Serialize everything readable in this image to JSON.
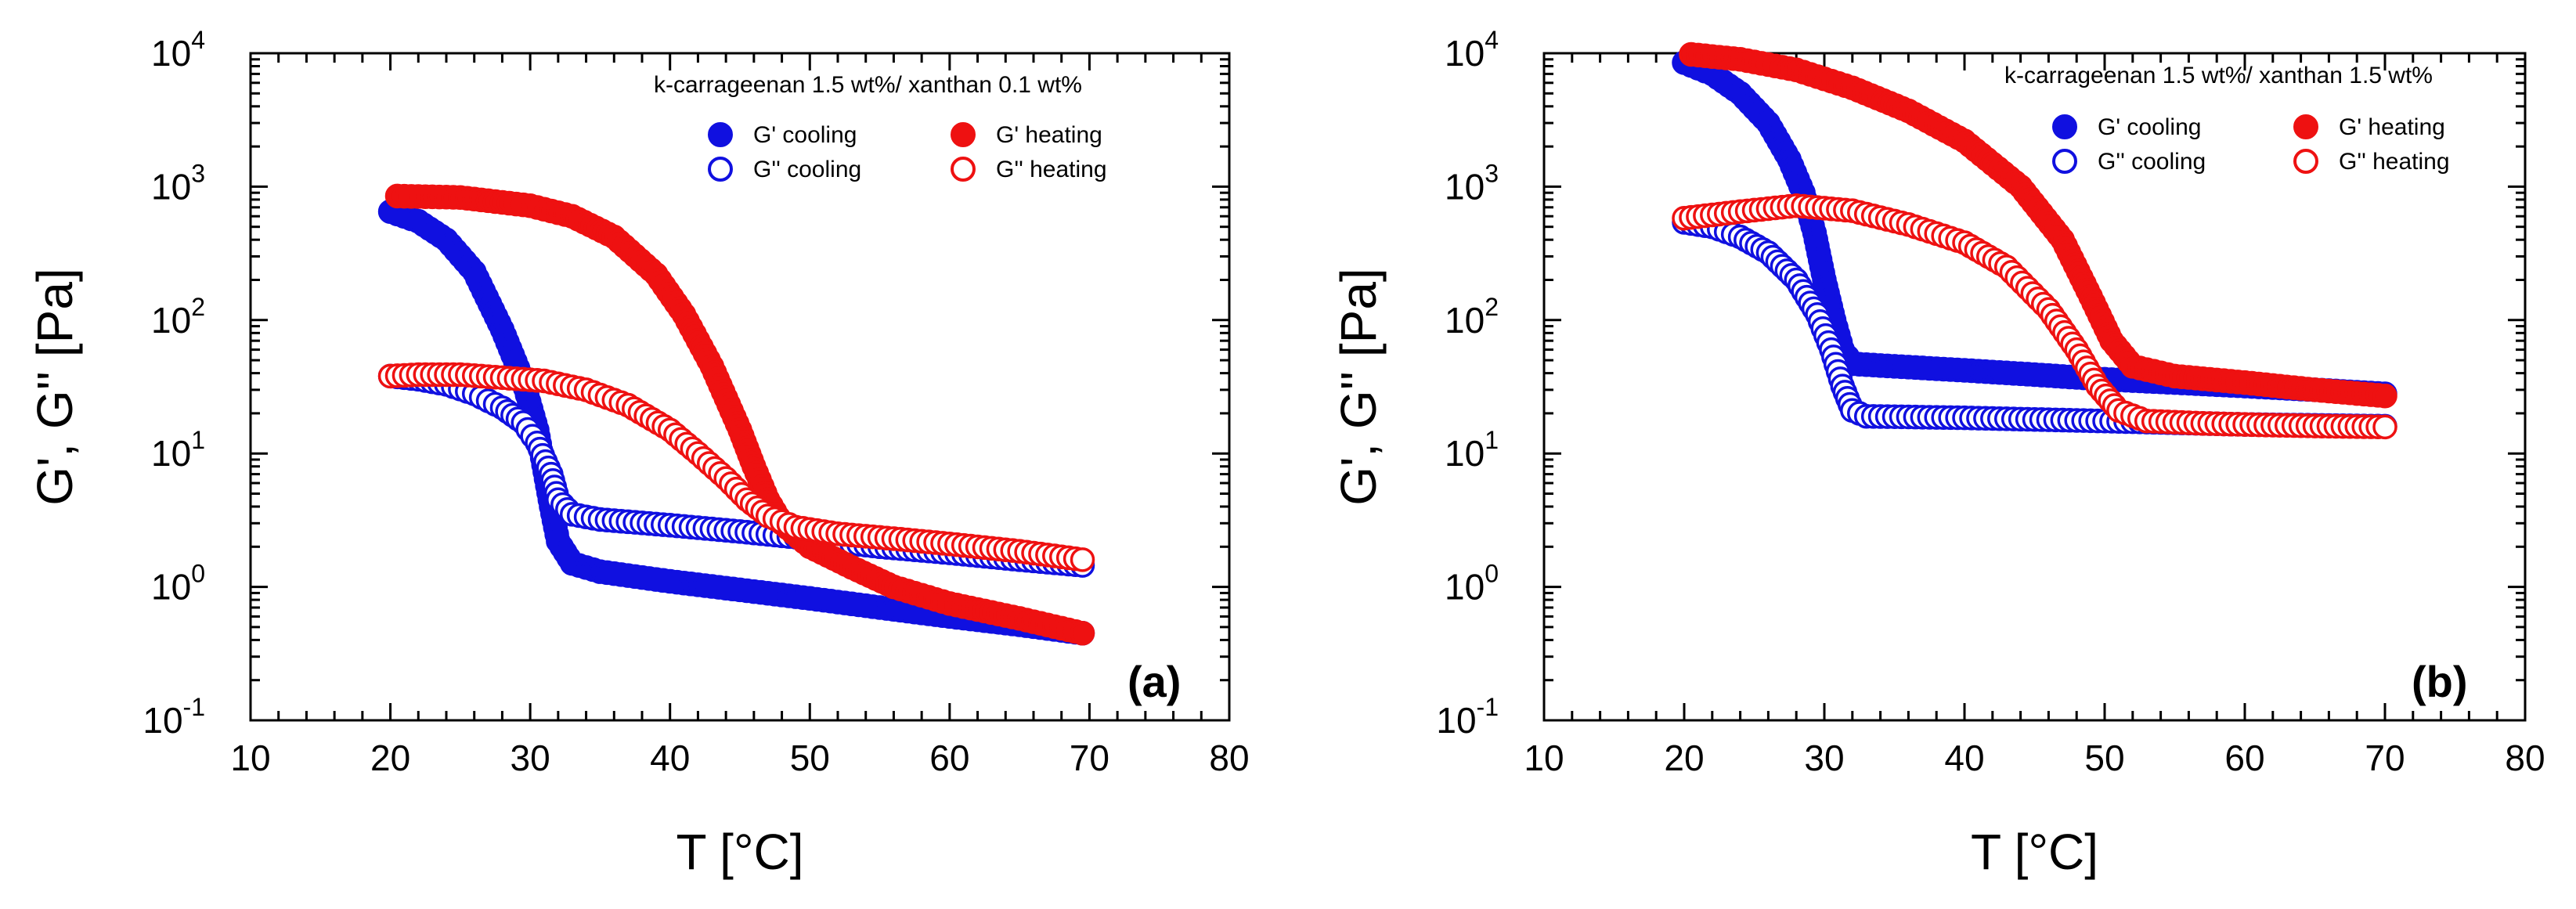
{
  "chart_data": [
    {
      "type": "scatter",
      "panel": "(a)",
      "subtitle": "k-carrageenan 1.5 wt%/ xanthan 0.1 wt%",
      "xlabel": "T [°C]",
      "ylabel": "G', G'' [Pa]",
      "xlim": [
        10,
        80
      ],
      "ylim": [
        0.1,
        10000
      ],
      "yscale": "log",
      "xticks": [
        10,
        20,
        30,
        40,
        50,
        60,
        70,
        80
      ],
      "yticks": [
        {
          "base": "10",
          "exp": "-1"
        },
        {
          "base": "10",
          "exp": "0"
        },
        {
          "base": "10",
          "exp": "1"
        },
        {
          "base": "10",
          "exp": "2"
        },
        {
          "base": "10",
          "exp": "3"
        },
        {
          "base": "10",
          "exp": "4"
        }
      ],
      "legend": [
        "G' cooling",
        "G''  cooling",
        "G' heating",
        "G'' heating"
      ],
      "series": [
        {
          "name": "G' cooling",
          "color": "#1010e0",
          "filled": true,
          "points": [
            [
              20,
              650
            ],
            [
              22,
              550
            ],
            [
              24,
              400
            ],
            [
              26,
              230
            ],
            [
              28,
              85
            ],
            [
              29.5,
              35
            ],
            [
              30.5,
              15
            ],
            [
              31.5,
              4
            ],
            [
              32,
              2.2
            ],
            [
              33,
              1.5
            ],
            [
              35,
              1.3
            ],
            [
              40,
              1.1
            ],
            [
              45,
              0.95
            ],
            [
              50,
              0.82
            ],
            [
              55,
              0.7
            ],
            [
              60,
              0.6
            ],
            [
              65,
              0.52
            ],
            [
              69.5,
              0.45
            ]
          ]
        },
        {
          "name": "G''  cooling",
          "color": "#1010e0",
          "filled": false,
          "points": [
            [
              20,
              38
            ],
            [
              22,
              36
            ],
            [
              24,
              33
            ],
            [
              26,
              28
            ],
            [
              28,
              22
            ],
            [
              29.5,
              17
            ],
            [
              30.5,
              12
            ],
            [
              31.5,
              7
            ],
            [
              32,
              4.5
            ],
            [
              33,
              3.5
            ],
            [
              35,
              3.2
            ],
            [
              40,
              2.9
            ],
            [
              45,
              2.6
            ],
            [
              50,
              2.3
            ],
            [
              55,
              2.0
            ],
            [
              60,
              1.8
            ],
            [
              65,
              1.6
            ],
            [
              69.5,
              1.45
            ]
          ]
        },
        {
          "name": "G' heating",
          "color": "#ee1111",
          "filled": true,
          "points": [
            [
              20.5,
              850
            ],
            [
              25,
              830
            ],
            [
              30,
              720
            ],
            [
              33,
              600
            ],
            [
              36,
              420
            ],
            [
              39,
              220
            ],
            [
              41,
              110
            ],
            [
              43,
              45
            ],
            [
              45,
              15
            ],
            [
              46,
              8
            ],
            [
              47,
              4.5
            ],
            [
              48,
              3
            ],
            [
              50,
              2
            ],
            [
              53,
              1.4
            ],
            [
              56,
              1.0
            ],
            [
              60,
              0.75
            ],
            [
              65,
              0.58
            ],
            [
              69.5,
              0.45
            ]
          ]
        },
        {
          "name": "G'' heating",
          "color": "#ee1111",
          "filled": false,
          "points": [
            [
              20,
              38
            ],
            [
              22,
              39
            ],
            [
              25,
              39
            ],
            [
              28,
              37
            ],
            [
              31,
              35
            ],
            [
              34,
              30
            ],
            [
              37,
              23
            ],
            [
              40,
              15
            ],
            [
              42,
              10
            ],
            [
              44,
              6.5
            ],
            [
              45.5,
              4.5
            ],
            [
              47,
              3.4
            ],
            [
              49,
              2.8
            ],
            [
              52,
              2.5
            ],
            [
              56,
              2.3
            ],
            [
              60,
              2.1
            ],
            [
              65,
              1.85
            ],
            [
              69.5,
              1.6
            ]
          ]
        }
      ]
    },
    {
      "type": "scatter",
      "panel": "(b)",
      "subtitle": "k-carrageenan 1.5 wt%/ xanthan 1.5 wt%",
      "xlabel": "T [°C]",
      "ylabel": "G', G'' [Pa]",
      "xlim": [
        10,
        80
      ],
      "ylim": [
        0.1,
        10000
      ],
      "yscale": "log",
      "xticks": [
        10,
        20,
        30,
        40,
        50,
        60,
        70,
        80
      ],
      "yticks": [
        {
          "base": "10",
          "exp": "-1"
        },
        {
          "base": "10",
          "exp": "0"
        },
        {
          "base": "10",
          "exp": "1"
        },
        {
          "base": "10",
          "exp": "2"
        },
        {
          "base": "10",
          "exp": "3"
        },
        {
          "base": "10",
          "exp": "4"
        }
      ],
      "legend": [
        "G' cooling",
        "G'' cooling",
        "G' heating",
        "G'' heating"
      ],
      "series": [
        {
          "name": "G' cooling",
          "color": "#1010e0",
          "filled": true,
          "points": [
            [
              20,
              8500
            ],
            [
              22,
              7000
            ],
            [
              24,
              5000
            ],
            [
              26,
              3000
            ],
            [
              27.5,
              1600
            ],
            [
              28.5,
              900
            ],
            [
              29.3,
              450
            ],
            [
              30,
              200
            ],
            [
              30.7,
              100
            ],
            [
              31.3,
              60
            ],
            [
              32,
              47
            ],
            [
              35,
              45
            ],
            [
              40,
              42
            ],
            [
              45,
              39
            ],
            [
              50,
              36
            ],
            [
              55,
              34
            ],
            [
              60,
              32
            ],
            [
              65,
              30
            ],
            [
              70,
              28
            ]
          ]
        },
        {
          "name": "G'' cooling",
          "color": "#1010e0",
          "filled": false,
          "points": [
            [
              20,
              540
            ],
            [
              22,
              500
            ],
            [
              24,
              420
            ],
            [
              26,
              320
            ],
            [
              28,
              200
            ],
            [
              29.5,
              110
            ],
            [
              30.5,
              60
            ],
            [
              31.3,
              32
            ],
            [
              32,
              21
            ],
            [
              33,
              19
            ],
            [
              40,
              18.5
            ],
            [
              50,
              17.5
            ],
            [
              60,
              16.5
            ],
            [
              70,
              16
            ]
          ]
        },
        {
          "name": "G' heating",
          "color": "#ee1111",
          "filled": true,
          "points": [
            [
              20.5,
              9800
            ],
            [
              24,
              9000
            ],
            [
              28,
              7500
            ],
            [
              32,
              5500
            ],
            [
              36,
              3700
            ],
            [
              40,
              2200
            ],
            [
              44,
              1000
            ],
            [
              47,
              400
            ],
            [
              49,
              150
            ],
            [
              50.5,
              70
            ],
            [
              52,
              45
            ],
            [
              55,
              38
            ],
            [
              60,
              34
            ],
            [
              65,
              30
            ],
            [
              70,
              27
            ]
          ]
        },
        {
          "name": "G'' heating",
          "color": "#ee1111",
          "filled": false,
          "points": [
            [
              20,
              580
            ],
            [
              24,
              650
            ],
            [
              28,
              720
            ],
            [
              32,
              660
            ],
            [
              36,
              520
            ],
            [
              40,
              380
            ],
            [
              43,
              250
            ],
            [
              46,
              120
            ],
            [
              48,
              60
            ],
            [
              49.5,
              32
            ],
            [
              51,
              21
            ],
            [
              53,
              17.5
            ],
            [
              57,
              16.8
            ],
            [
              62,
              16.3
            ],
            [
              66,
              16
            ],
            [
              70,
              15.8
            ]
          ]
        }
      ]
    }
  ]
}
